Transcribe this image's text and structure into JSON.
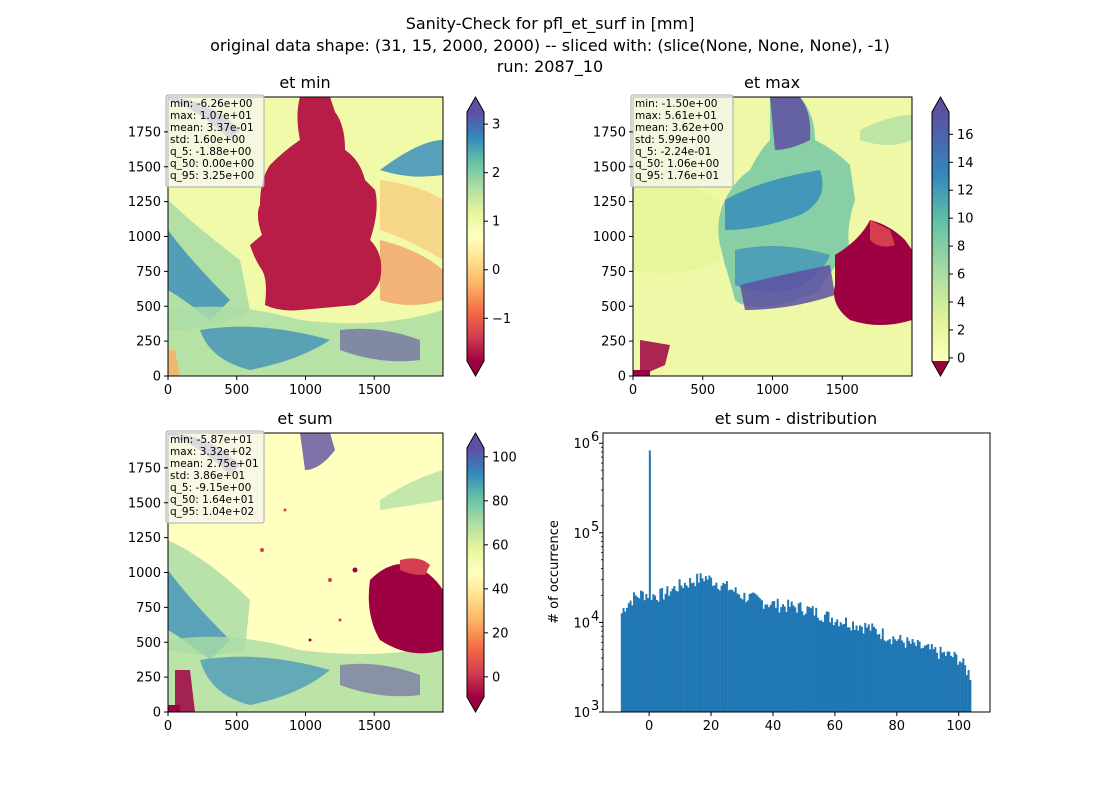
{
  "figure": {
    "suptitle": [
      "Sanity-Check for pfl_et_surf in [mm]",
      "original data shape: (31, 15, 2000, 2000) -- sliced with: (slice(None, None, None), -1)",
      "run: 2087_10"
    ],
    "colormap": "Spectral",
    "colors": {
      "hist_bar": "#1f77b4",
      "map_low": "#9e0142",
      "map_mid": "#ffffbf",
      "map_high": "#5e4fa2"
    }
  },
  "chart_data": [
    {
      "type": "heatmap",
      "id": "et_min",
      "title": "et min",
      "x_ticks": [
        0,
        500,
        1000,
        1500
      ],
      "y_ticks": [
        0,
        250,
        500,
        750,
        1000,
        1250,
        1500,
        1750
      ],
      "xlim": [
        0,
        2000
      ],
      "ylim": [
        0,
        2000
      ],
      "colorbar": {
        "ticks": [
          -1,
          0,
          1,
          2,
          3
        ],
        "tick_labels": [
          "−1",
          "0",
          "1",
          "2",
          "3"
        ],
        "range": [
          -1.88,
          3.25
        ],
        "extend": "both"
      },
      "stats": [
        "min: -6.26e+00",
        "max: 1.07e+01",
        "mean: 3.37e-01",
        "std: 1.60e+00",
        "q_5: -1.88e+00",
        "q_50: 0.00e+00",
        "q_95: 3.25e+00"
      ]
    },
    {
      "type": "heatmap",
      "id": "et_max",
      "title": "et max",
      "x_ticks": [
        0,
        500,
        1000,
        1500
      ],
      "y_ticks": [
        0,
        250,
        500,
        750,
        1000,
        1250,
        1500,
        1750
      ],
      "xlim": [
        0,
        2000
      ],
      "ylim": [
        0,
        2000
      ],
      "colorbar": {
        "ticks": [
          0,
          2,
          4,
          6,
          8,
          10,
          12,
          14,
          16
        ],
        "tick_labels": [
          "0",
          "2",
          "4",
          "6",
          "8",
          "10",
          "12",
          "14",
          "16"
        ],
        "range": [
          -0.224,
          17.6
        ],
        "extend": "both"
      },
      "stats": [
        "min: -1.50e+00",
        "max: 5.61e+01",
        "mean: 3.62e+00",
        "std: 5.99e+00",
        "q_5: -2.24e-01",
        "q_50: 1.06e+00",
        "q_95: 1.76e+01"
      ]
    },
    {
      "type": "heatmap",
      "id": "et_sum",
      "title": "et sum",
      "x_ticks": [
        0,
        500,
        1000,
        1500
      ],
      "y_ticks": [
        0,
        250,
        500,
        750,
        1000,
        1250,
        1500,
        1750
      ],
      "xlim": [
        0,
        2000
      ],
      "ylim": [
        0,
        2000
      ],
      "colorbar": {
        "ticks": [
          0,
          20,
          40,
          60,
          80,
          100
        ],
        "tick_labels": [
          "0",
          "20",
          "40",
          "60",
          "80",
          "100"
        ],
        "range": [
          -9.15,
          104
        ],
        "extend": "both"
      },
      "stats": [
        "min: -5.87e+01",
        "max: 3.32e+02",
        "mean: 2.75e+01",
        "std: 3.86e+01",
        "q_5: -9.15e+00",
        "q_50: 1.64e+01",
        "q_95: 1.04e+02"
      ]
    },
    {
      "type": "bar",
      "id": "et_sum_distribution",
      "title": "et sum - distribution",
      "ylabel": "# of occurrence",
      "xlabel": "",
      "y_scale": "log",
      "xlim": [
        -14.9,
        110.1
      ],
      "ylim": [
        1000,
        1300000
      ],
      "x_ticks": [
        0,
        20,
        40,
        60,
        80,
        100
      ],
      "y_ticks": [
        1000,
        10000,
        100000,
        1000000
      ],
      "y_tick_labels": [
        "10",
        "10",
        "10",
        "10"
      ],
      "y_tick_exponents": [
        "3",
        "4",
        "5",
        "6"
      ],
      "bin_start": -9.15,
      "bin_end": 104,
      "bins": 200,
      "spike": {
        "x": 0,
        "value": 830000
      },
      "profile": [
        [
          -9.15,
          12000
        ],
        [
          -8,
          15000
        ],
        [
          -5,
          19000
        ],
        [
          -2,
          21000
        ],
        [
          2,
          20000
        ],
        [
          5,
          21000
        ],
        [
          10,
          26000
        ],
        [
          15,
          30000
        ],
        [
          18,
          32000
        ],
        [
          22,
          28000
        ],
        [
          26,
          24000
        ],
        [
          30,
          20000
        ],
        [
          40,
          16000
        ],
        [
          50,
          14500
        ],
        [
          60,
          11000
        ],
        [
          70,
          9000
        ],
        [
          80,
          6500
        ],
        [
          90,
          5000
        ],
        [
          100,
          4000
        ],
        [
          104,
          2500
        ]
      ]
    }
  ]
}
